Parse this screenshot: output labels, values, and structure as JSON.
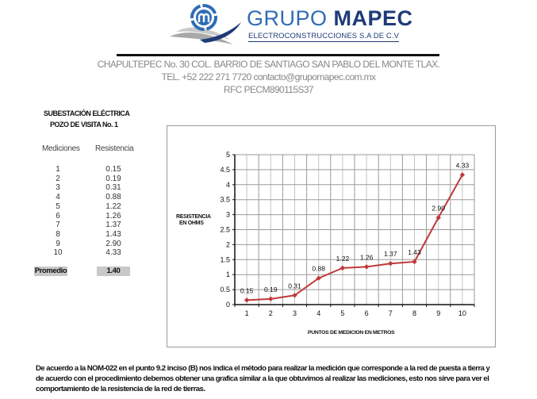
{
  "header": {
    "brand_part1": "GRUPO",
    "brand_part2": "MAPEC",
    "brand_subtitle": "ELECTROCONSTRUCCIONES S.A DE C.V",
    "address": "CHAPULTEPEC No. 30 COL. BARRIO DE SANTIAGO SAN PABLO DEL MONTE TLAX.",
    "contact": "TEL. +52 222 271 7720   contacto@grupomapec.com.mx",
    "rfc": "RFC PECM890115S37",
    "logo_icon": "mapec-logo-icon"
  },
  "section": {
    "title_line1": "SUBESTACIÓN ELÉCTRICA",
    "title_line2": "POZO DE VISITA No. 1"
  },
  "table": {
    "headers": [
      "Mediciones",
      "Resistencia"
    ],
    "rows": [
      {
        "medicion": "1",
        "resistencia": "0.15"
      },
      {
        "medicion": "2",
        "resistencia": "0.19"
      },
      {
        "medicion": "3",
        "resistencia": "0.31"
      },
      {
        "medicion": "4",
        "resistencia": "0.88"
      },
      {
        "medicion": "5",
        "resistencia": "1.22"
      },
      {
        "medicion": "6",
        "resistencia": "1.26"
      },
      {
        "medicion": "7",
        "resistencia": "1.37"
      },
      {
        "medicion": "8",
        "resistencia": "1.43"
      },
      {
        "medicion": "9",
        "resistencia": "2.90"
      },
      {
        "medicion": "10",
        "resistencia": "4.33"
      }
    ],
    "average_label": "Promedio",
    "average_value": "1.40"
  },
  "chart_data": {
    "type": "line",
    "title": "",
    "xlabel": "PUNTOS DE MEDICION EN METROS",
    "ylabel_line1": "RESISTENCIA",
    "ylabel_line2": "EN OHMS",
    "categories": [
      "1",
      "2",
      "3",
      "4",
      "5",
      "6",
      "7",
      "8",
      "9",
      "10"
    ],
    "series": [
      {
        "name": "Resistencia",
        "values": [
          0.15,
          0.19,
          0.31,
          0.88,
          1.22,
          1.26,
          1.37,
          1.43,
          2.9,
          4.33
        ],
        "labels": [
          "0.15",
          "0.19",
          "0.31",
          "0.88",
          "1.22",
          "1.26",
          "1.37",
          "1.43",
          "2.90",
          "4.33"
        ],
        "color": "#c0393b",
        "marker": "diamond"
      }
    ],
    "ylim": [
      0,
      5
    ],
    "yticks": [
      "0",
      "0.5",
      "1",
      "1.5",
      "2",
      "2.5",
      "3",
      "3.5",
      "4",
      "4.5",
      "5"
    ],
    "grid": true,
    "legend": "none"
  },
  "footer": {
    "line1": "De acuerdo a la NOM-022 en el punto 9.2 inciso (B) nos indica el método para realizar la medición que corresponde a la red de puesta a tierra y",
    "line2": "de acuerdo con el procedimiento debemos obtener una grafica similar a la que obtuvimos al realizar las mediciones, esto nos sirve para ver el",
    "line3": "comportamiento de la resistencia de la red de tierras."
  }
}
